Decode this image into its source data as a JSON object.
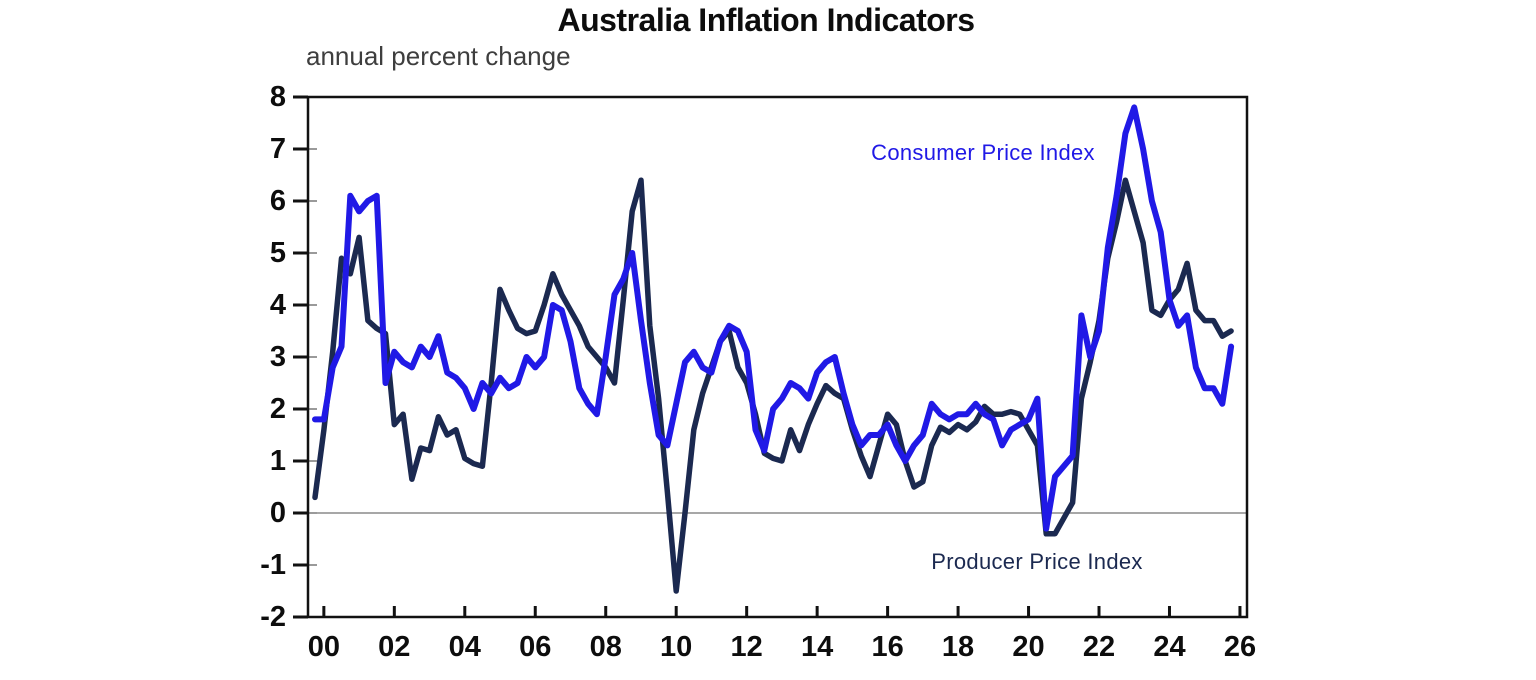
{
  "page": {
    "background": "#ffffff"
  },
  "chart_data": {
    "type": "line",
    "title": "Australia Inflation Indicators",
    "subtitle": "annual percent change",
    "frequency": "quarterly",
    "x_start": 1999.75,
    "x_step": 0.25,
    "xlim": [
      1999.55,
      2026.2
    ],
    "ylim": [
      -2,
      8
    ],
    "grid": false,
    "zero_line": true,
    "legend_position": "inline-annotations",
    "axis_color": "#111111",
    "zero_line_color": "#8a8a8a",
    "x_axis": {
      "tick_years": [
        2000,
        2002,
        2004,
        2006,
        2008,
        2010,
        2012,
        2014,
        2016,
        2018,
        2020,
        2022,
        2024,
        2026
      ],
      "tick_labels": [
        "00",
        "02",
        "04",
        "06",
        "08",
        "10",
        "12",
        "14",
        "16",
        "18",
        "20",
        "22",
        "24",
        "26"
      ]
    },
    "y_axis": {
      "ticks": [
        8,
        7,
        6,
        5,
        4,
        3,
        2,
        1,
        0,
        -1,
        -2
      ],
      "tick_labels": [
        "8",
        "7",
        "6",
        "5",
        "4",
        "3",
        "2",
        "1",
        "0",
        "-1",
        "-2"
      ]
    },
    "series": [
      {
        "name": "Producer Price Index",
        "color": "#1b2950",
        "stroke_width": 5.5,
        "values": [
          0.3,
          1.6,
          3.1,
          4.9,
          4.6,
          5.3,
          3.7,
          3.55,
          3.45,
          1.7,
          1.9,
          0.65,
          1.25,
          1.2,
          1.85,
          1.5,
          1.6,
          1.05,
          0.95,
          0.9,
          2.5,
          4.3,
          3.9,
          3.55,
          3.45,
          3.5,
          4.0,
          4.6,
          4.2,
          3.9,
          3.6,
          3.2,
          3.0,
          2.8,
          2.5,
          4.1,
          5.8,
          6.4,
          3.6,
          2.2,
          0.4,
          -1.5,
          0.0,
          1.6,
          2.3,
          2.8,
          3.3,
          3.5,
          2.8,
          2.5,
          1.9,
          1.15,
          1.05,
          1.0,
          1.6,
          1.2,
          1.7,
          2.1,
          2.45,
          2.3,
          2.2,
          1.6,
          1.1,
          0.7,
          1.3,
          1.9,
          1.7,
          1.0,
          0.5,
          0.6,
          1.3,
          1.65,
          1.55,
          1.7,
          1.6,
          1.75,
          2.05,
          1.9,
          1.9,
          1.95,
          1.9,
          1.6,
          1.3,
          -0.4,
          -0.4,
          -0.1,
          0.2,
          2.2,
          2.9,
          3.7,
          4.9,
          5.6,
          6.4,
          5.8,
          5.2,
          3.9,
          3.8,
          4.1,
          4.3,
          4.8,
          3.9,
          3.7,
          3.7,
          3.4,
          3.5
        ]
      },
      {
        "name": "Consumer Price Index",
        "color": "#2019e6",
        "stroke_width": 6,
        "values": [
          1.8,
          1.8,
          2.8,
          3.2,
          6.1,
          5.8,
          6.0,
          6.1,
          2.5,
          3.1,
          2.9,
          2.8,
          3.2,
          3.0,
          3.4,
          2.7,
          2.6,
          2.4,
          2.0,
          2.5,
          2.3,
          2.6,
          2.4,
          2.5,
          3.0,
          2.8,
          3.0,
          4.0,
          3.9,
          3.3,
          2.4,
          2.1,
          1.9,
          3.0,
          4.2,
          4.5,
          5.0,
          3.7,
          2.5,
          1.5,
          1.3,
          2.1,
          2.9,
          3.1,
          2.8,
          2.7,
          3.3,
          3.6,
          3.5,
          3.1,
          1.6,
          1.2,
          2.0,
          2.2,
          2.5,
          2.4,
          2.2,
          2.7,
          2.9,
          3.0,
          2.3,
          1.7,
          1.3,
          1.5,
          1.5,
          1.7,
          1.3,
          1.0,
          1.3,
          1.5,
          2.1,
          1.9,
          1.8,
          1.9,
          1.9,
          2.1,
          1.9,
          1.8,
          1.3,
          1.6,
          1.7,
          1.8,
          2.2,
          -0.3,
          0.7,
          0.9,
          1.1,
          3.8,
          3.0,
          3.5,
          5.1,
          6.1,
          7.3,
          7.8,
          7.0,
          6.0,
          5.4,
          4.1,
          3.6,
          3.8,
          2.8,
          2.4,
          2.4,
          2.1,
          3.2
        ]
      }
    ],
    "annotations": [
      {
        "text": "Consumer Price Index",
        "series": "Consumer Price Index"
      },
      {
        "text": "Producer Price Index",
        "series": "Producer Price Index"
      }
    ]
  }
}
